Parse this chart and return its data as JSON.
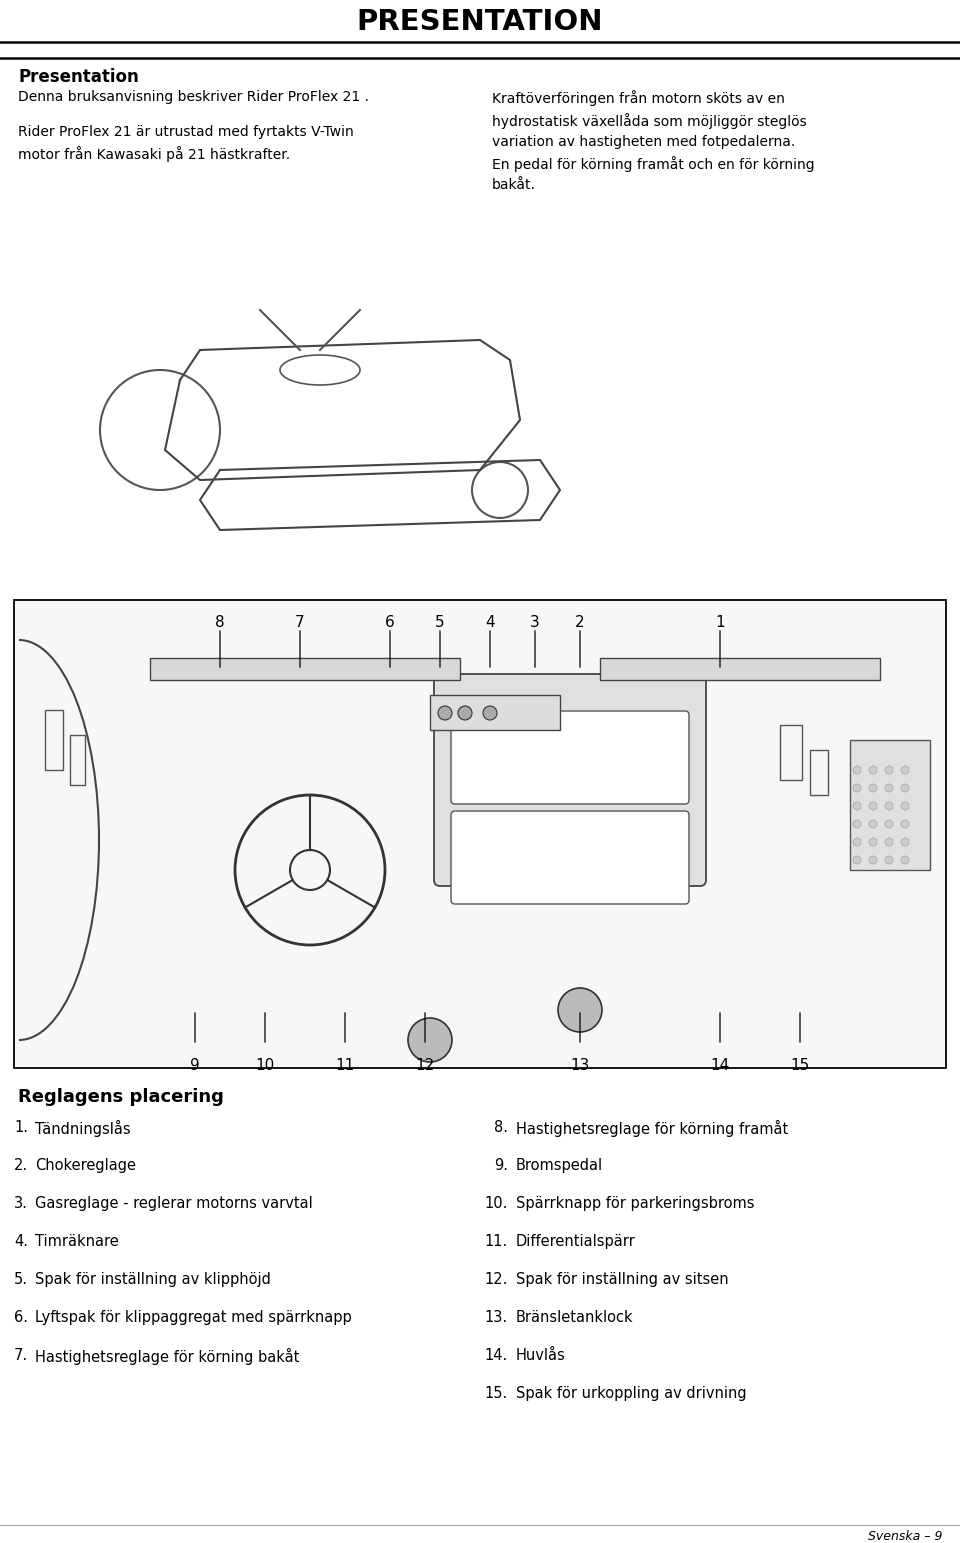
{
  "title": "PRESENTATION",
  "section_title": "Presentation",
  "left_col_line1": "Denna bruksanvisning beskriver Rider ProFlex 21 .",
  "left_col_line2": "Rider ProFlex 21 är utrustad med fyrtakts V-Twin\nmotor från Kawasaki på 21 hästkrafter.",
  "right_col_text": "Kraftöverföringen från motorn sköts av en\nhydrostatisk växellåda som möjliggör steglös\nvariation av hastigheten med fotpedalerna.\nEn pedal för körning framåt och en för körning\nbakåt.",
  "diagram_label": "Reglagens placering",
  "numbers_top": [
    "8",
    "7",
    "6",
    "5",
    "4",
    "3",
    "2",
    "1"
  ],
  "numbers_top_x": [
    220,
    300,
    390,
    440,
    490,
    535,
    580,
    720
  ],
  "numbers_bottom": [
    "9",
    "10",
    "11",
    "12",
    "13",
    "14",
    "15"
  ],
  "numbers_bottom_x": [
    195,
    265,
    345,
    425,
    580,
    720,
    800
  ],
  "left_list": [
    [
      "1.",
      "Tändningslås"
    ],
    [
      "2.",
      "Chokereglage"
    ],
    [
      "3.",
      "Gasreglage - reglerar motorns varvtal"
    ],
    [
      "4.",
      "Timräknare"
    ],
    [
      "5.",
      "Spak för inställning av klipphöjd"
    ],
    [
      "6.",
      "Lyftspak för klippaggregat med spärrknapp"
    ],
    [
      "7.",
      "Hastighetsreglage för körning bakåt"
    ]
  ],
  "right_list": [
    [
      "8.",
      "Hastighetsreglage för körning framåt"
    ],
    [
      "9.",
      "Bromspedal"
    ],
    [
      "10.",
      "Spärrknapp för parkeringsbroms"
    ],
    [
      "11.",
      "Differentialspärr"
    ],
    [
      "12.",
      "Spak för inställning av sitsen"
    ],
    [
      "13.",
      "Bränsletanklock"
    ],
    [
      "14.",
      "Huvlås"
    ],
    [
      "15.",
      "Spak för urkoppling av drivning"
    ]
  ],
  "footer": "Svenska – 9",
  "bg": "#ffffff",
  "fg": "#000000"
}
